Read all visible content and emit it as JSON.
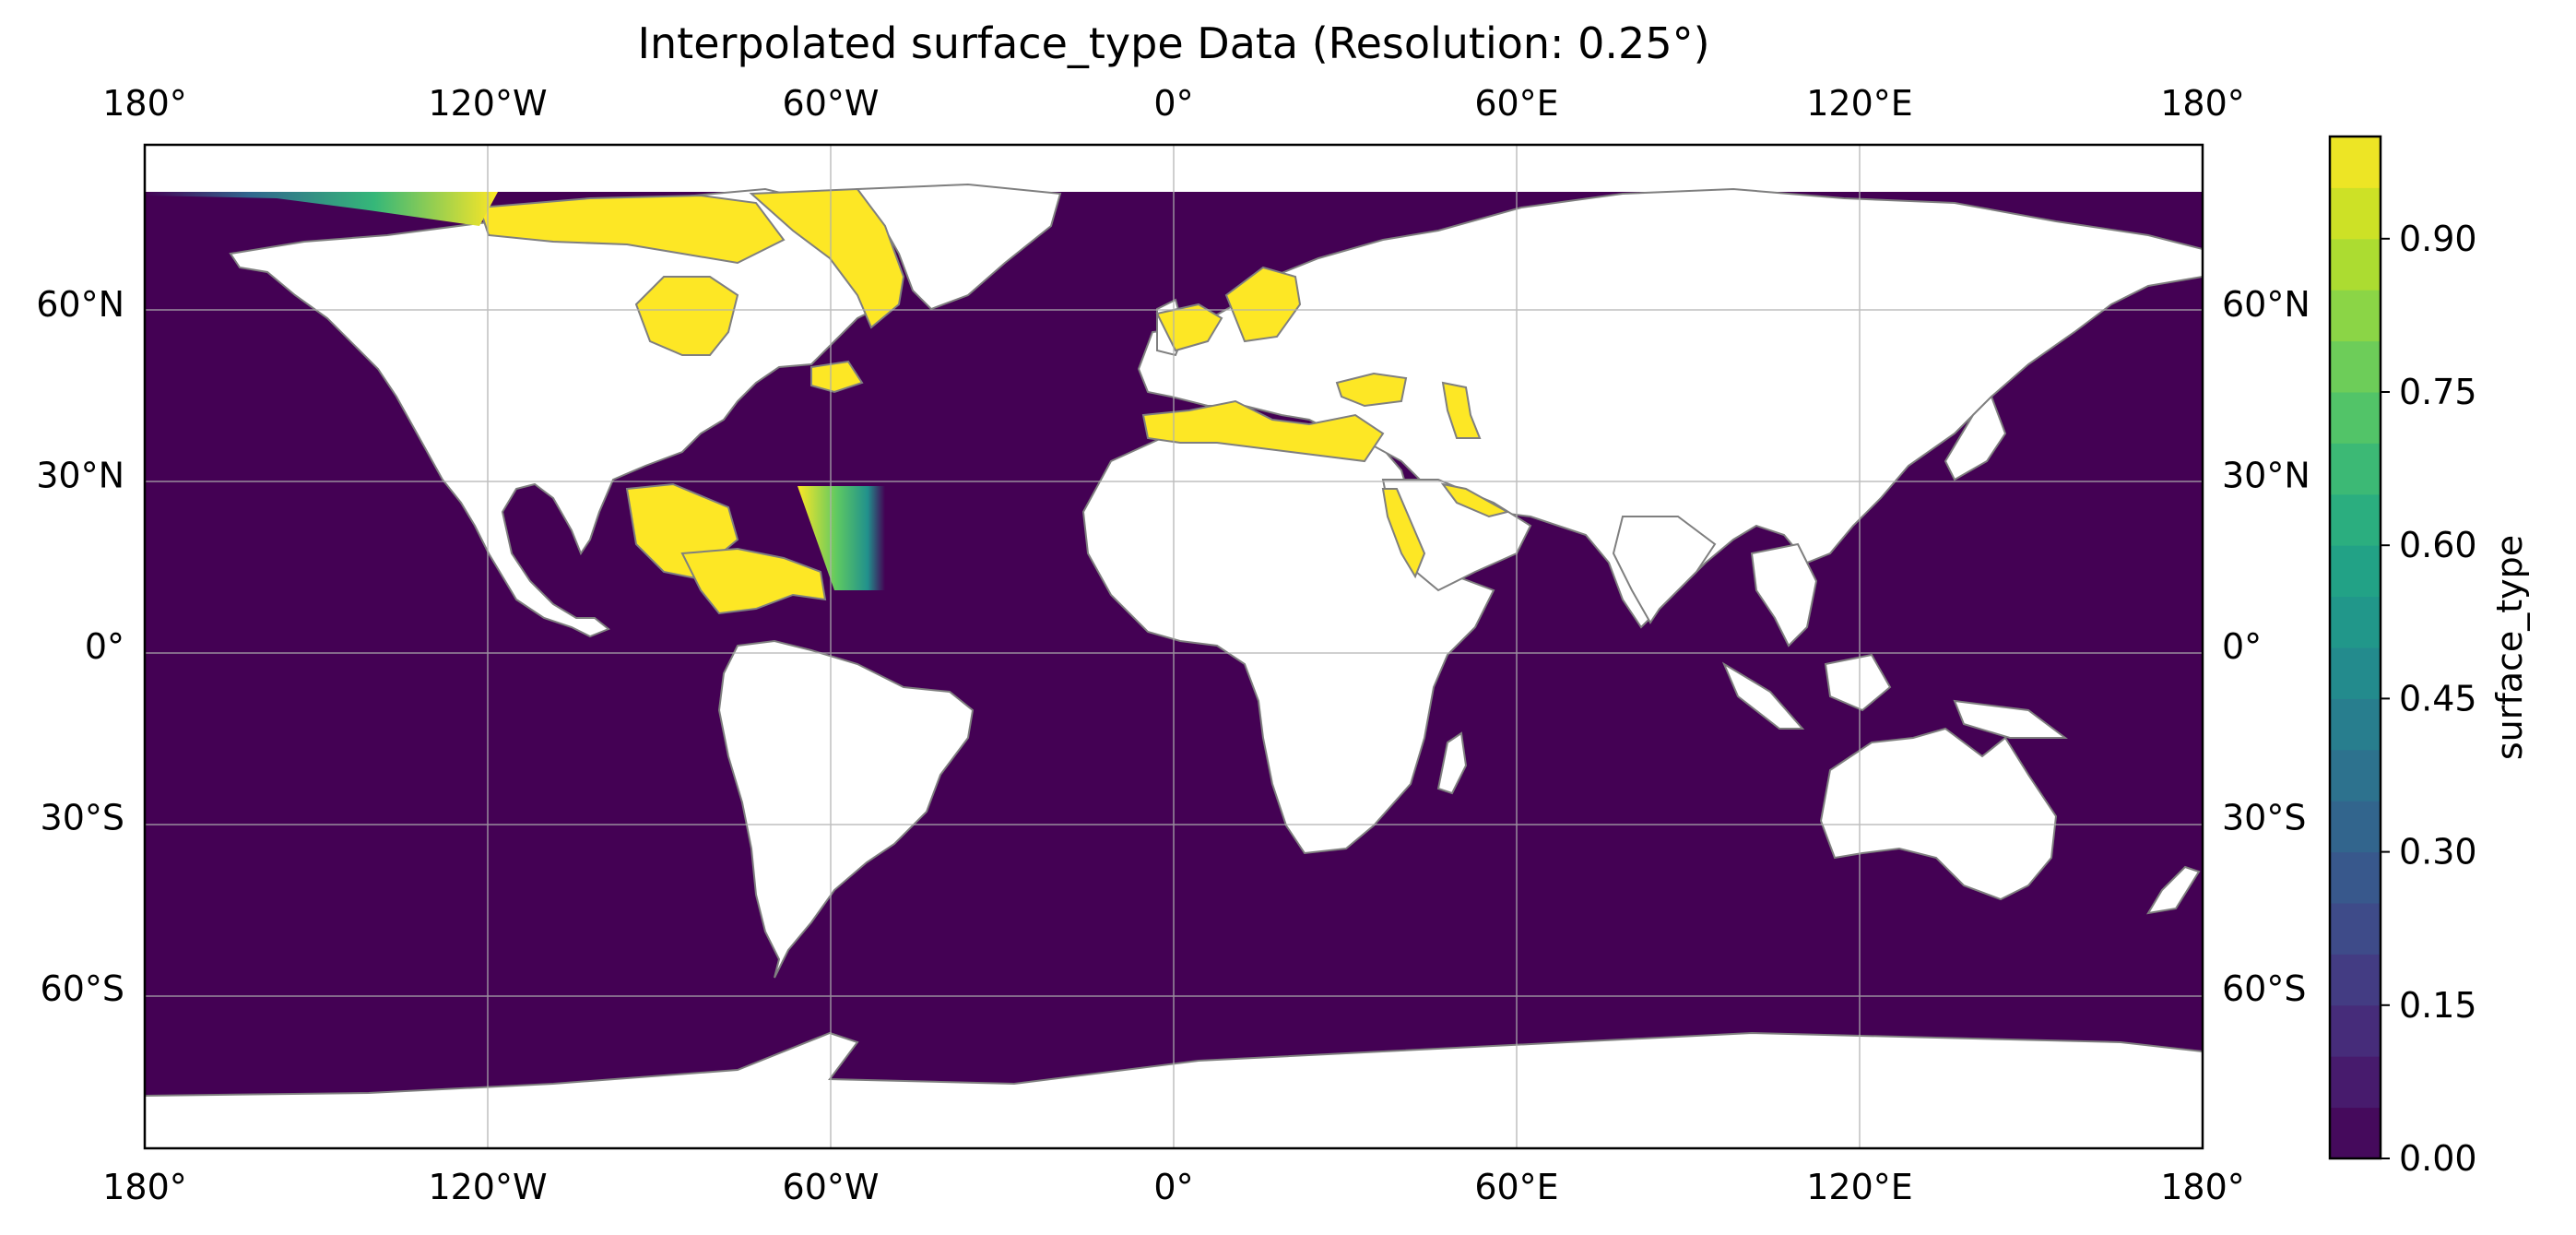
{
  "title": "Interpolated surface_type Data (Resolution: 0.25°)",
  "colorbar": {
    "label": "surface_type",
    "ticks": [
      "0.00",
      "0.15",
      "0.30",
      "0.45",
      "0.60",
      "0.75",
      "0.90"
    ],
    "tick_values": [
      0.0,
      0.15,
      0.3,
      0.45,
      0.6,
      0.75,
      0.9
    ],
    "range": [
      0.0,
      1.0
    ],
    "levels": 20,
    "colormap": "viridis"
  },
  "axes": {
    "lon_ticks_top": [
      "180°",
      "120°W",
      "60°W",
      "0°",
      "60°E",
      "120°E",
      "180°"
    ],
    "lon_ticks_bottom": [
      "180°",
      "120°W",
      "60°W",
      "0°",
      "60°E",
      "120°E",
      "180°"
    ],
    "lat_ticks_left": [
      "60°N",
      "30°N",
      "0°",
      "30°S",
      "60°S"
    ],
    "lat_ticks_right": [
      "60°N",
      "30°N",
      "0°",
      "30°S",
      "60°S"
    ],
    "lon_values": [
      -180,
      -120,
      -60,
      0,
      60,
      120,
      180
    ],
    "lat_values": [
      60,
      30,
      0,
      -30,
      -60
    ],
    "grid": true
  },
  "map": {
    "projection": "PlateCarree",
    "extent": [
      -180,
      180,
      -88,
      88
    ],
    "data_lat_range": [
      -78,
      80
    ],
    "ocean_value": 0.0,
    "land_fill": "none",
    "coastline_color": "#7f7f7f",
    "inland_seas_value": 1.0
  },
  "colors": {
    "viridis_low": "#440154",
    "viridis_high": "#fde725"
  }
}
